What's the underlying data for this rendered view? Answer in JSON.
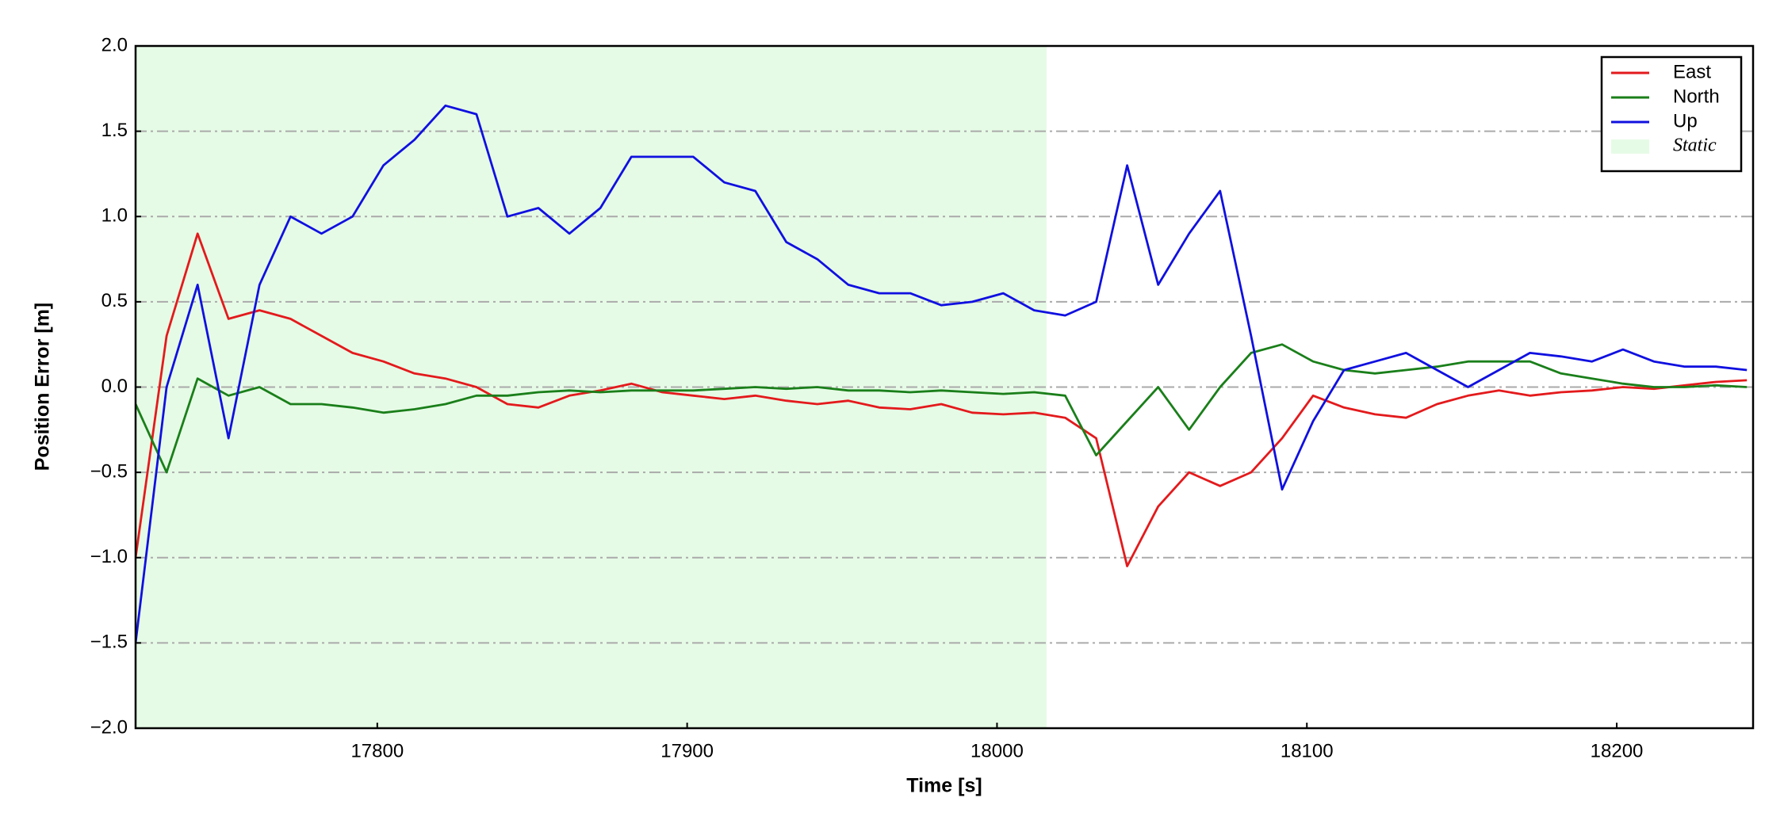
{
  "chart_data": {
    "type": "line",
    "xlabel": "Time [s]",
    "ylabel": "Position Error [m]",
    "x": [
      17722,
      17732,
      17742,
      17752,
      17762,
      17772,
      17782,
      17792,
      17802,
      17812,
      17822,
      17832,
      17842,
      17852,
      17862,
      17872,
      17882,
      17892,
      17902,
      17912,
      17922,
      17932,
      17942,
      17952,
      17962,
      17972,
      17982,
      17992,
      18002,
      18012,
      18022,
      18032,
      18042,
      18052,
      18062,
      18072,
      18082,
      18092,
      18102,
      18112,
      18122,
      18132,
      18142,
      18152,
      18162,
      18172,
      18182,
      18192,
      18202,
      18212,
      18222,
      18232,
      18242
    ],
    "series": [
      {
        "name": "East",
        "color": "#e31a1c",
        "values": [
          -1.0,
          0.3,
          0.9,
          0.4,
          0.45,
          0.4,
          0.3,
          0.2,
          0.15,
          0.08,
          0.05,
          0.0,
          -0.1,
          -0.12,
          -0.05,
          -0.02,
          0.02,
          -0.03,
          -0.05,
          -0.07,
          -0.05,
          -0.08,
          -0.1,
          -0.08,
          -0.12,
          -0.13,
          -0.1,
          -0.15,
          -0.16,
          -0.15,
          -0.18,
          -0.3,
          -1.05,
          -0.7,
          -0.5,
          -0.58,
          -0.5,
          -0.3,
          -0.05,
          -0.12,
          -0.16,
          -0.18,
          -0.1,
          -0.05,
          -0.02,
          -0.05,
          -0.03,
          -0.02,
          0.0,
          -0.01,
          0.01,
          0.03,
          0.04
        ]
      },
      {
        "name": "North",
        "color": "#1a7f1a",
        "values": [
          -0.1,
          -0.5,
          0.05,
          -0.05,
          0.0,
          -0.1,
          -0.1,
          -0.12,
          -0.15,
          -0.13,
          -0.1,
          -0.05,
          -0.05,
          -0.03,
          -0.02,
          -0.03,
          -0.02,
          -0.02,
          -0.02,
          -0.01,
          0.0,
          -0.01,
          0.0,
          -0.02,
          -0.02,
          -0.03,
          -0.02,
          -0.03,
          -0.04,
          -0.03,
          -0.05,
          -0.4,
          -0.2,
          0.0,
          -0.25,
          0.0,
          0.2,
          0.25,
          0.15,
          0.1,
          0.08,
          0.1,
          0.12,
          0.15,
          0.15,
          0.15,
          0.08,
          0.05,
          0.02,
          0.0,
          0.0,
          0.01,
          0.0
        ]
      },
      {
        "name": "Up",
        "color": "#1010e0",
        "values": [
          -1.5,
          0.0,
          0.6,
          -0.3,
          0.6,
          1.0,
          0.9,
          1.0,
          1.3,
          1.45,
          1.65,
          1.6,
          1.0,
          1.05,
          0.9,
          1.05,
          1.35,
          1.35,
          1.35,
          1.2,
          1.15,
          0.85,
          0.75,
          0.6,
          0.55,
          0.55,
          0.48,
          0.5,
          0.55,
          0.45,
          0.42,
          0.5,
          1.3,
          0.6,
          0.9,
          1.15,
          0.3,
          -0.6,
          -0.2,
          0.1,
          0.15,
          0.2,
          0.1,
          0.0,
          0.1,
          0.2,
          0.18,
          0.15,
          0.22,
          0.15,
          0.12,
          0.12,
          0.1
        ]
      }
    ],
    "static_span": {
      "name": "Static",
      "color": "#e6fbe6",
      "x": [
        17722,
        18016
      ]
    },
    "xlim": [
      17722,
      18244
    ],
    "ylim": [
      -2,
      2
    ],
    "xticks": [
      17800,
      17900,
      18000,
      18100,
      18200
    ],
    "yticks": [
      {
        "value": -2,
        "label": "−2.0"
      },
      {
        "value": -1.5,
        "label": "−1.5"
      },
      {
        "value": -1,
        "label": "−1.0"
      },
      {
        "value": -0.5,
        "label": "−0.5"
      },
      {
        "value": 0,
        "label": "0.0"
      },
      {
        "value": 0.5,
        "label": "0.5"
      },
      {
        "value": 1,
        "label": "1.0"
      },
      {
        "value": 1.5,
        "label": "1.5"
      },
      {
        "value": 2,
        "label": "2.0"
      }
    ],
    "grid": true,
    "legend": "upper right"
  }
}
